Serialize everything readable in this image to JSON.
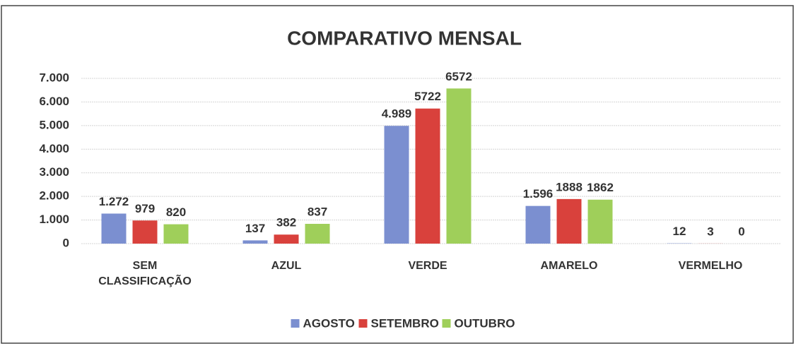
{
  "chart_data": {
    "type": "bar",
    "title": "COMPARATIVO MENSAL",
    "categories": [
      "SEM CLASSIFICAÇÃO",
      "AZUL",
      "VERDE",
      "AMARELO",
      "VERMELHO"
    ],
    "series": [
      {
        "name": "AGOSTO",
        "color": "#7b8fd0",
        "values": [
          1272,
          137,
          4989,
          1596,
          12
        ],
        "value_labels": [
          "1.272",
          "137",
          "4.989",
          "1.596",
          "12"
        ]
      },
      {
        "name": "SETEMBRO",
        "color": "#d9413c",
        "values": [
          979,
          382,
          5722,
          1888,
          3
        ]
      },
      {
        "name": "OUTUBRO",
        "color": "#9fcf5a",
        "values": [
          820,
          837,
          6572,
          1862,
          0
        ]
      }
    ],
    "ylim": [
      0,
      7000
    ],
    "yticks": [
      0,
      {
        "value": 1000,
        "label": "1.000"
      },
      {
        "value": 2000,
        "label": "2.000"
      },
      {
        "value": 3000,
        "label": "3.000"
      },
      {
        "value": 4000,
        "label": "4.000"
      },
      {
        "value": 5000,
        "label": "5.000"
      },
      {
        "value": 6000,
        "label": "6.000"
      },
      {
        "value": 7000,
        "label": "7.000"
      }
    ],
    "grid": true,
    "legend": "bottom"
  }
}
